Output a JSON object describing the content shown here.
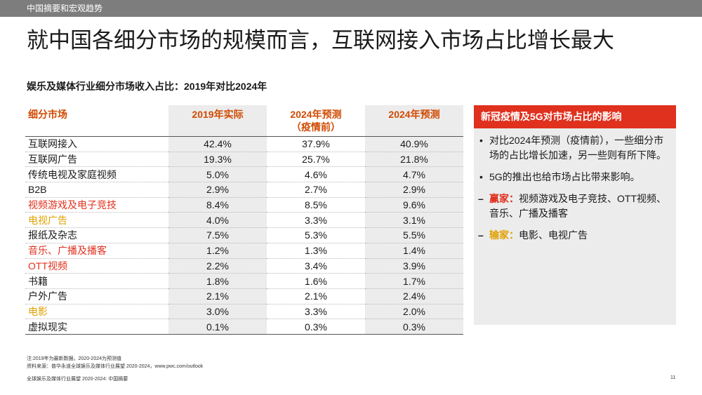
{
  "header": {
    "section": "中国摘要和宏观趋势"
  },
  "title": "就中国各细分市场的规模而言，互联网接入市场占比增长最大",
  "subtitle": "娱乐及媒体行业细分市场收入占比：2019年对比2024年",
  "table": {
    "columns": [
      "细分市场",
      "2019年实际",
      "2024年预测\n（疫情前）",
      "2024年预测"
    ],
    "rows": [
      {
        "name": "互联网接入",
        "v2019": "42.4%",
        "v2024pre": "37.9%",
        "v2024": "40.9%",
        "tone": "normal"
      },
      {
        "name": "互联网广告",
        "v2019": "19.3%",
        "v2024pre": "25.7%",
        "v2024": "21.8%",
        "tone": "normal"
      },
      {
        "name": "传统电视及家庭视频",
        "v2019": "5.0%",
        "v2024pre": "4.6%",
        "v2024": "4.7%",
        "tone": "normal"
      },
      {
        "name": "B2B",
        "v2019": "2.9%",
        "v2024pre": "2.7%",
        "v2024": "2.9%",
        "tone": "normal"
      },
      {
        "name": "视频游戏及电子竞技",
        "v2019": "8.4%",
        "v2024pre": "8.5%",
        "v2024": "9.6%",
        "tone": "red"
      },
      {
        "name": "电视广告",
        "v2019": "4.0%",
        "v2024pre": "3.3%",
        "v2024": "3.1%",
        "tone": "gold"
      },
      {
        "name": "报纸及杂志",
        "v2019": "7.5%",
        "v2024pre": "5.3%",
        "v2024": "5.5%",
        "tone": "normal"
      },
      {
        "name": "音乐、广播及播客",
        "v2019": "1.2%",
        "v2024pre": "1.3%",
        "v2024": "1.4%",
        "tone": "red"
      },
      {
        "name": "OTT视频",
        "v2019": "2.2%",
        "v2024pre": "3.4%",
        "v2024": "3.9%",
        "tone": "red"
      },
      {
        "name": "书籍",
        "v2019": "1.8%",
        "v2024pre": "1.6%",
        "v2024": "1.7%",
        "tone": "normal"
      },
      {
        "name": "户外广告",
        "v2019": "2.1%",
        "v2024pre": "2.1%",
        "v2024": "2.4%",
        "tone": "normal"
      },
      {
        "name": "电影",
        "v2019": "3.0%",
        "v2024pre": "3.3%",
        "v2024": "2.0%",
        "tone": "gold"
      },
      {
        "name": "虚拟现实",
        "v2019": "0.1%",
        "v2024pre": "0.3%",
        "v2024": "0.3%",
        "tone": "normal"
      }
    ]
  },
  "sidebar": {
    "heading": "新冠疫情及5G对市场占比的影响",
    "bullet1": "对比2024年预测（疫情前），一些细分市场的占比增长加速，另一些则有所下降。",
    "bullet2": "5G的推出也给市场占比带来影响。",
    "winners_label": "赢家：",
    "winners_text": "视频游戏及电子竞技、OTT视频、音乐、广播及播客",
    "losers_label": "输家：",
    "losers_text": "电影、电视广告",
    "bullet_mark": "•",
    "dash_mark": "–"
  },
  "notes": {
    "line1": "注:2019年为最新数据。2020-2024为预测值",
    "line2": "资料来源：普华永道全球娱乐及媒体行业展望 2020-2024，www.pwc.com/outlook"
  },
  "footer": {
    "text": "全球娱乐及媒体行业展望 2020-2024: 中国摘要",
    "page": "11"
  },
  "colors": {
    "accent_red": "#e0301e",
    "accent_orange": "#d04a02",
    "accent_gold": "#e0a100",
    "topbar": "#7d7d7d",
    "panel": "#ececec"
  }
}
